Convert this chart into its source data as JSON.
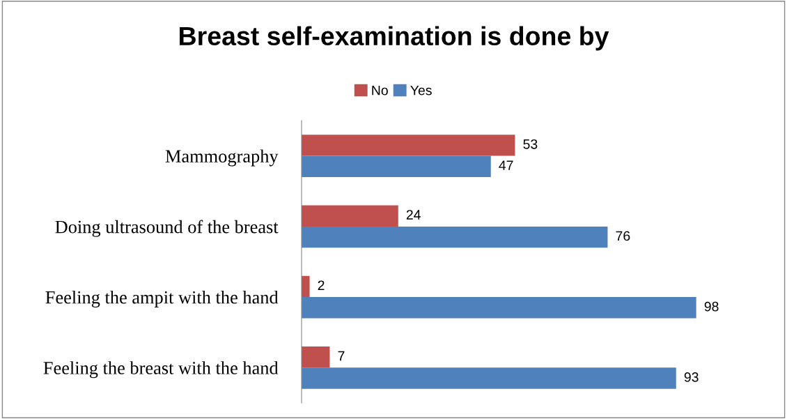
{
  "chart_data": {
    "type": "bar",
    "orientation": "horizontal",
    "title": "Breast self-examination is done by",
    "categories": [
      "Mammography",
      "Doing ultrasound of the breast",
      "Feeling the ampit with the hand",
      "Feeling the breast with the hand"
    ],
    "series": [
      {
        "name": "No",
        "color": "#c0504d",
        "values": [
          53,
          24,
          2,
          7
        ]
      },
      {
        "name": "Yes",
        "color": "#4f81bd",
        "values": [
          47,
          76,
          98,
          93
        ]
      }
    ],
    "data_labels": true,
    "legend": "top",
    "grid": false
  }
}
